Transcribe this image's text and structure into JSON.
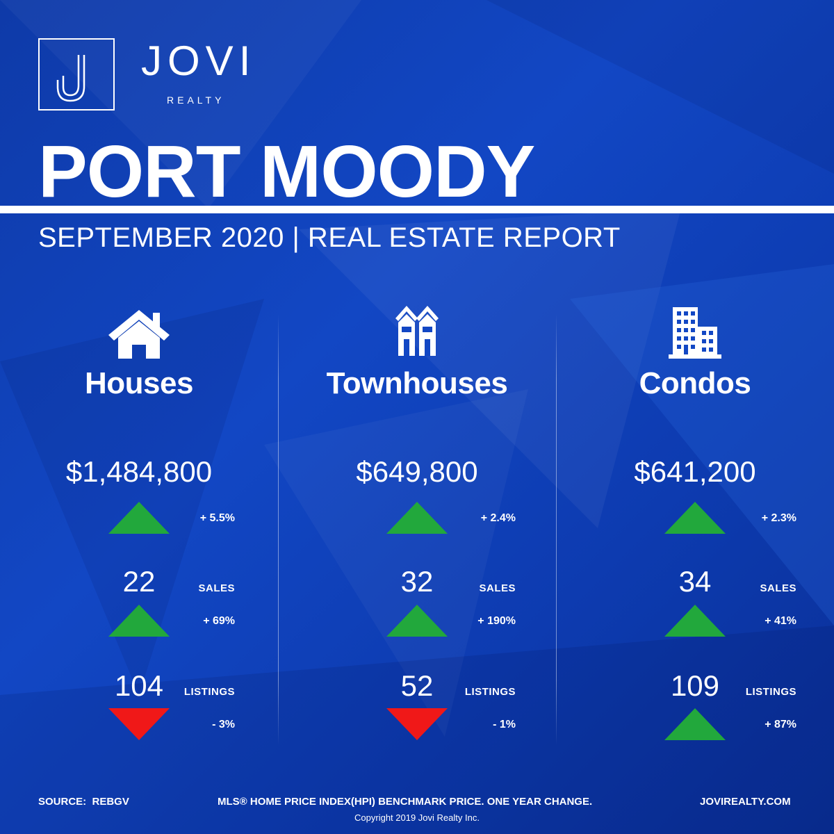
{
  "brand": {
    "name": "JOVI",
    "sub": "REALTY"
  },
  "title": "PORT MOODY",
  "subtitle": "SEPTEMBER 2020 | REAL ESTATE REPORT",
  "columns": [
    {
      "category": "Houses",
      "icon": "house-icon",
      "price": "$1,484,800",
      "price_change": "+ 5.5%",
      "price_trend": "up",
      "sales": "22",
      "sales_label": "SALES",
      "sales_change": "+ 69%",
      "sales_trend": "up",
      "listings": "104",
      "listings_label": "LISTINGS",
      "listings_change": "- 3%",
      "listings_trend": "down"
    },
    {
      "category": "Townhouses",
      "icon": "townhouse-icon",
      "price": "$649,800",
      "price_change": "+ 2.4%",
      "price_trend": "up",
      "sales": "32",
      "sales_label": "SALES",
      "sales_change": "+ 190%",
      "sales_trend": "up",
      "listings": "52",
      "listings_label": "LISTINGS",
      "listings_change": "- 1%",
      "listings_trend": "down"
    },
    {
      "category": "Condos",
      "icon": "building-icon",
      "price": "$641,200",
      "price_change": "+ 2.3%",
      "price_trend": "up",
      "sales": "34",
      "sales_label": "SALES",
      "sales_change": "+ 41%",
      "sales_trend": "up",
      "listings": "109",
      "listings_label": "LISTINGS",
      "listings_change": "+ 87%",
      "listings_trend": "up"
    }
  ],
  "footer": {
    "source": "SOURCE:  REBGV",
    "note": "MLS® HOME PRICE INDEX(HPI) BENCHMARK PRICE. ONE YEAR CHANGE.",
    "website": "JOVIREALTY.COM",
    "copyright": "Copyright 2019 Jovi Realty Inc."
  },
  "colors": {
    "background": "#1247c4",
    "up": "#22a83c",
    "down": "#f01818",
    "text": "#ffffff"
  }
}
